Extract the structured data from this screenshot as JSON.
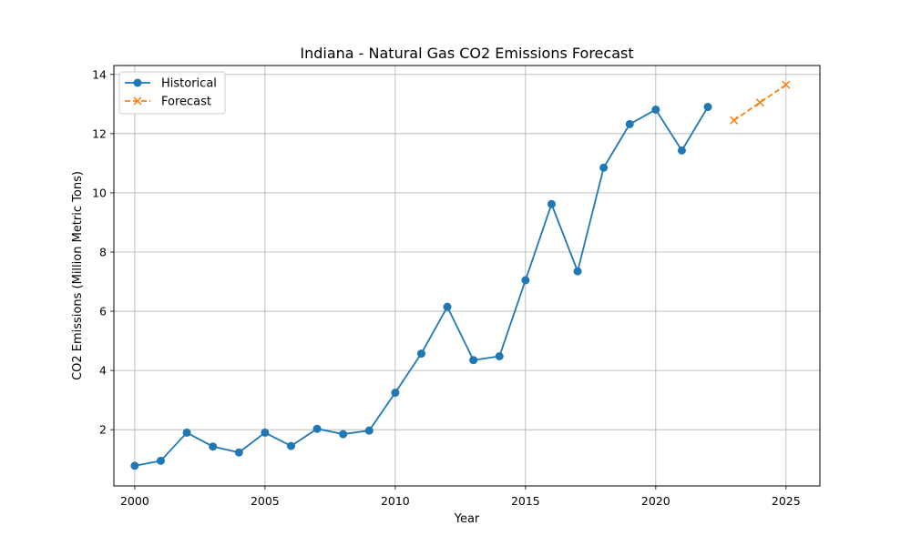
{
  "chart_data": {
    "type": "line",
    "title": "Indiana - Natural Gas CO2 Emissions Forecast",
    "xlabel": "Year",
    "ylabel": "CO2 Emissions (Million Metric Tons)",
    "xlim": [
      1999.2,
      2026.3
    ],
    "ylim": [
      0.1,
      14.3
    ],
    "xticks": [
      2000,
      2005,
      2010,
      2015,
      2020,
      2025
    ],
    "yticks": [
      2,
      4,
      6,
      8,
      10,
      12,
      14
    ],
    "grid": true,
    "legend_position": "top-left",
    "series": [
      {
        "name": "Historical",
        "color": "#1f77b4",
        "style": "solid",
        "marker": "circle",
        "x": [
          2000,
          2001,
          2002,
          2003,
          2004,
          2005,
          2006,
          2007,
          2008,
          2009,
          2010,
          2011,
          2012,
          2013,
          2014,
          2015,
          2016,
          2017,
          2018,
          2019,
          2020,
          2021,
          2022
        ],
        "values": [
          0.78,
          0.95,
          1.9,
          1.43,
          1.23,
          1.9,
          1.45,
          2.03,
          1.85,
          1.97,
          3.25,
          4.57,
          6.15,
          4.35,
          4.48,
          7.05,
          9.62,
          7.35,
          10.85,
          12.32,
          12.81,
          11.43,
          12.9
        ]
      },
      {
        "name": "Forecast",
        "color": "#ff7f0e",
        "style": "dashed",
        "marker": "x",
        "x": [
          2023,
          2024,
          2025
        ],
        "values": [
          12.45,
          13.05,
          13.65
        ]
      }
    ]
  }
}
